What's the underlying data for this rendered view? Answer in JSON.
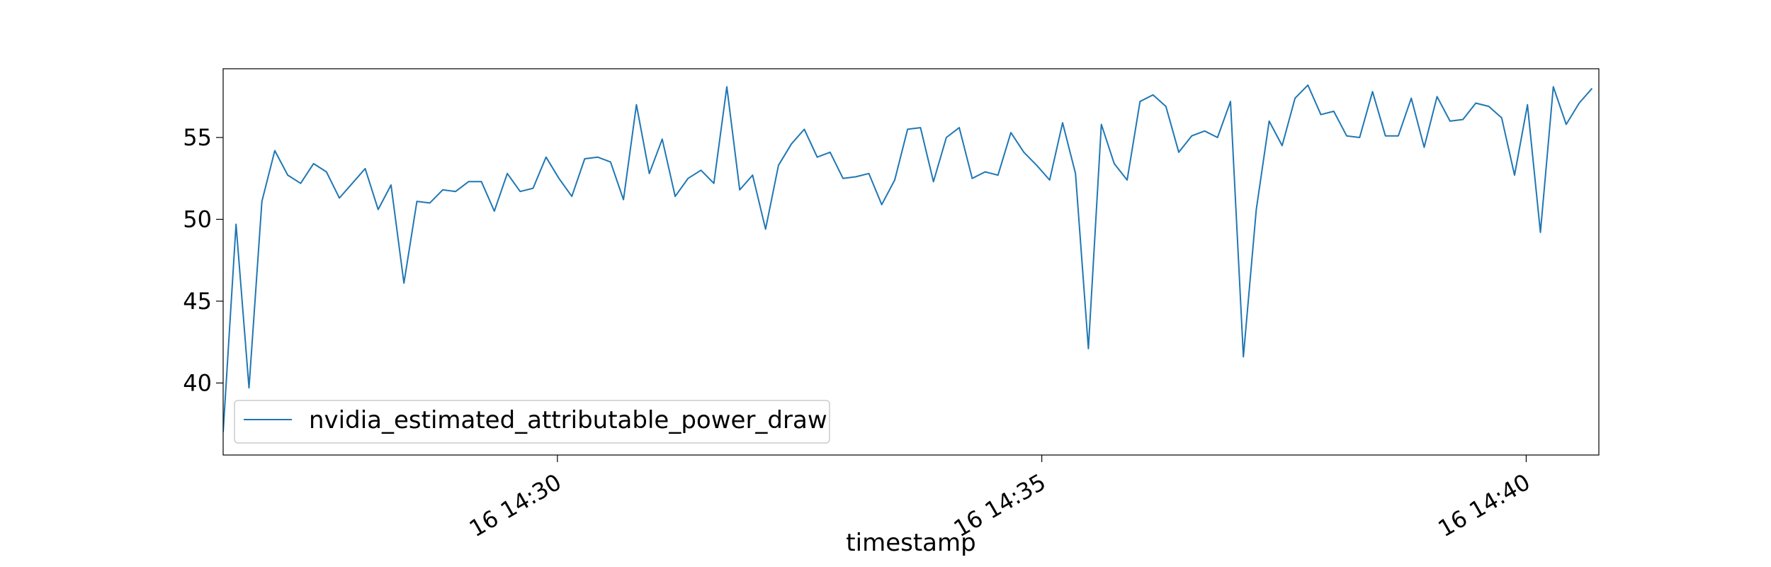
{
  "chart_data": {
    "type": "line",
    "title": "",
    "xlabel": "timestamp",
    "ylabel": "",
    "x_unit": "minutes",
    "x_range": [
      "16 14:26:33",
      "16 14:40:45"
    ],
    "xlim": [
      26.55,
      40.75
    ],
    "ylim": [
      35.6,
      59.2
    ],
    "y_ticks": [
      40,
      45,
      50,
      55
    ],
    "x_ticks": [
      {
        "value": 30,
        "label": "16 14:30"
      },
      {
        "value": 35,
        "label": "16 14:35"
      },
      {
        "value": 40,
        "label": "16 14:40"
      }
    ],
    "grid": false,
    "legend": {
      "position": "lower-left"
    },
    "series": [
      {
        "name": "nvidia_estimated_attributable_power_draw",
        "color": "#1f77b4",
        "x_start": 26.55,
        "x_step": 0.1333,
        "values": [
          37,
          49.7,
          39.7,
          51.1,
          54.2,
          52.7,
          52.2,
          53.4,
          52.9,
          51.3,
          52.2,
          53.1,
          50.6,
          52.1,
          46.1,
          51.1,
          51.0,
          51.8,
          51.7,
          52.3,
          52.3,
          50.5,
          52.8,
          51.7,
          51.9,
          53.8,
          52.5,
          51.4,
          53.7,
          53.8,
          53.5,
          51.2,
          57.0,
          52.8,
          54.9,
          51.4,
          52.5,
          53.0,
          52.2,
          58.1,
          51.8,
          52.7,
          49.4,
          53.3,
          54.6,
          55.5,
          53.8,
          54.1,
          52.5,
          52.6,
          52.8,
          50.9,
          52.4,
          55.5,
          55.6,
          52.3,
          55.0,
          55.6,
          52.5,
          52.9,
          52.7,
          55.3,
          54.1,
          53.3,
          52.4,
          55.9,
          52.8,
          42.1,
          55.8,
          53.4,
          52.4,
          57.2,
          57.6,
          56.9,
          54.1,
          55.1,
          55.4,
          55.0,
          57.2,
          41.6,
          50.6,
          56.0,
          54.5,
          57.4,
          58.2,
          56.4,
          56.6,
          55.1,
          55.0,
          57.8,
          55.1,
          55.1,
          57.4,
          54.4,
          57.5,
          56.0,
          56.1,
          57.1,
          56.9,
          56.2,
          52.7,
          57.0,
          49.2,
          58.1,
          55.8,
          57.1,
          58.0
        ]
      }
    ]
  }
}
